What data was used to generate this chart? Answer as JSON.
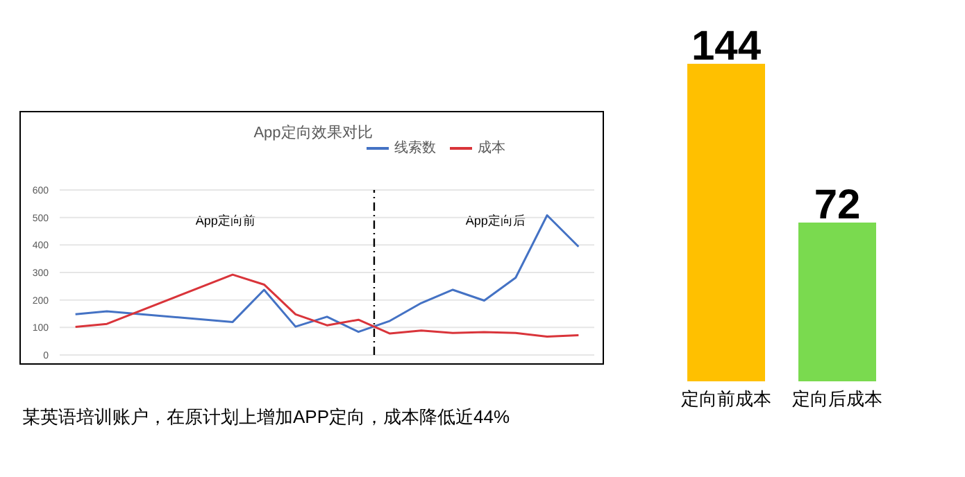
{
  "chart_data": [
    {
      "type": "line",
      "title": "App定向效果对比",
      "categories": [
        null,
        null,
        null,
        null,
        null,
        null,
        null,
        null,
        null,
        null,
        null,
        null,
        null,
        null,
        null,
        null,
        null
      ],
      "series": [
        {
          "name": "线索数",
          "color": "#4472c4",
          "values": [
            148,
            159,
            null,
            null,
            null,
            120,
            237,
            103,
            139,
            84,
            124,
            189,
            237,
            198,
            281,
            508,
            394
          ]
        },
        {
          "name": "成本",
          "color": "#d9343a",
          "values": [
            102,
            113,
            null,
            null,
            null,
            292,
            256,
            148,
            108,
            128,
            78,
            89,
            80,
            83,
            80,
            67,
            72
          ]
        }
      ],
      "ylim": [
        0,
        600
      ],
      "yticks": [
        0,
        100,
        200,
        300,
        400,
        500,
        600
      ],
      "tick_labels": "y",
      "grid": "y",
      "legend": "top right",
      "marker": "none",
      "line_style": "solid",
      "annotations": [
        "App定向前",
        "App定向后",
        "某英语培训账户，在原计划上增加APP定向，成本降低近44%"
      ]
    },
    {
      "type": "bar",
      "categories": [
        "定向前成本",
        "定向后成本"
      ],
      "values": [
        144,
        72
      ],
      "colors": [
        "#ffc000",
        "#7ada4f"
      ],
      "data_labels": true
    }
  ]
}
